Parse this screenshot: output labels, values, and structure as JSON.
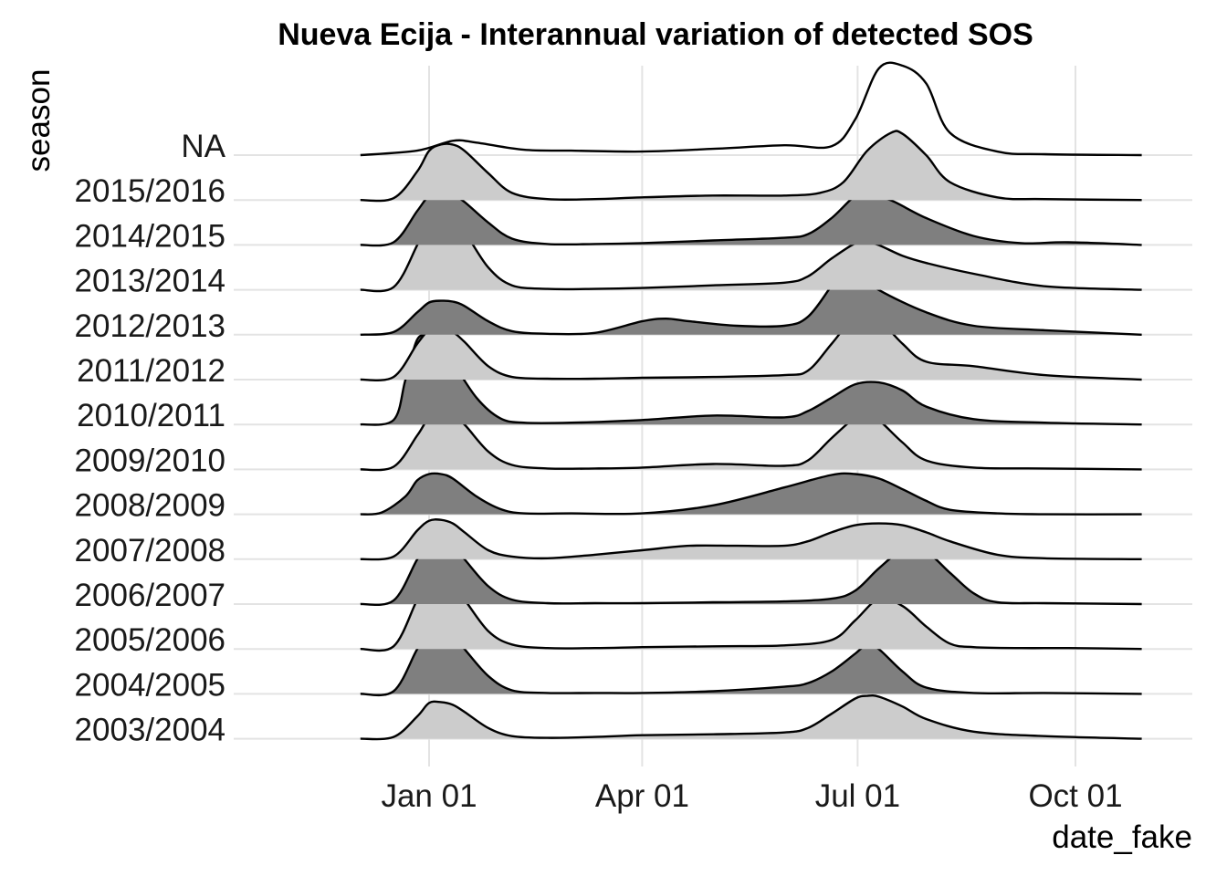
{
  "chart_data": {
    "type": "area",
    "subtype": "ridgeline",
    "title": "Nueva Ecija - Interannual variation of detected SOS",
    "xlabel": "date_fake",
    "ylabel": "season",
    "x_ticks": [
      "Jan 01",
      "Apr 01",
      "Jul 01",
      "Oct 01"
    ],
    "x_tick_days": [
      0,
      90,
      181,
      273
    ],
    "x_range_days": [
      -29,
      301
    ],
    "grid": true,
    "fill_colors": {
      "light": "#cccccc",
      "dark": "#7f7f7f",
      "none": "none"
    },
    "note_units": "x values are days relative to Jan 01; y values are relative ridge heights",
    "series": [
      {
        "name": "NA",
        "fill": "none",
        "x": [
          -29,
          -5,
          10,
          20,
          40,
          60,
          90,
          120,
          150,
          170,
          180,
          190,
          200,
          210,
          220,
          240,
          260,
          301
        ],
        "y": [
          0,
          0.05,
          0.16,
          0.14,
          0.06,
          0.05,
          0.04,
          0.07,
          0.11,
          0.1,
          0.4,
          0.97,
          1.0,
          0.8,
          0.25,
          0.04,
          0.01,
          0
        ]
      },
      {
        "name": "2015/2016",
        "fill": "light",
        "x": [
          -29,
          -15,
          -5,
          0,
          5,
          10,
          15,
          25,
          35,
          50,
          70,
          90,
          120,
          150,
          165,
          175,
          185,
          195,
          200,
          210,
          220,
          240,
          260,
          301
        ],
        "y": [
          0,
          0.02,
          0.32,
          0.55,
          0.62,
          0.62,
          0.55,
          0.3,
          0.08,
          0.01,
          0.01,
          0.03,
          0.05,
          0.05,
          0.08,
          0.2,
          0.55,
          0.75,
          0.74,
          0.5,
          0.2,
          0.03,
          0.01,
          0
        ]
      },
      {
        "name": "2014/2015",
        "fill": "dark",
        "x": [
          -29,
          -15,
          -5,
          0,
          5,
          10,
          15,
          25,
          35,
          50,
          70,
          90,
          120,
          150,
          160,
          170,
          180,
          185,
          195,
          210,
          230,
          250,
          270,
          301
        ],
        "y": [
          0,
          0.03,
          0.38,
          0.55,
          0.58,
          0.56,
          0.48,
          0.25,
          0.07,
          0.01,
          0.01,
          0.02,
          0.05,
          0.08,
          0.12,
          0.3,
          0.55,
          0.57,
          0.5,
          0.3,
          0.1,
          0.02,
          0.03,
          0
        ]
      },
      {
        "name": "2013/2014",
        "fill": "light",
        "x": [
          -29,
          -15,
          -5,
          0,
          5,
          10,
          15,
          25,
          35,
          50,
          70,
          90,
          120,
          150,
          160,
          170,
          180,
          185,
          190,
          200,
          210,
          230,
          260,
          301
        ],
        "y": [
          0,
          0.03,
          0.5,
          0.8,
          0.84,
          0.8,
          0.65,
          0.25,
          0.05,
          0.01,
          0.01,
          0.02,
          0.05,
          0.08,
          0.15,
          0.35,
          0.52,
          0.53,
          0.5,
          0.38,
          0.3,
          0.18,
          0.04,
          0
        ]
      },
      {
        "name": "2012/2013",
        "fill": "dark",
        "x": [
          -29,
          -15,
          -5,
          0,
          5,
          10,
          15,
          25,
          35,
          50,
          70,
          90,
          100,
          110,
          130,
          150,
          160,
          170,
          175,
          180,
          190,
          210,
          230,
          260,
          301
        ],
        "y": [
          0,
          0.03,
          0.25,
          0.36,
          0.38,
          0.37,
          0.32,
          0.15,
          0.04,
          0.01,
          0.02,
          0.15,
          0.18,
          0.15,
          0.1,
          0.1,
          0.2,
          0.55,
          0.75,
          0.7,
          0.5,
          0.25,
          0.1,
          0.05,
          0
        ]
      },
      {
        "name": "2011/2012",
        "fill": "light",
        "x": [
          -29,
          -15,
          -5,
          0,
          5,
          10,
          15,
          25,
          35,
          50,
          70,
          90,
          120,
          150,
          160,
          170,
          180,
          185,
          190,
          200,
          210,
          230,
          260,
          301
        ],
        "y": [
          0,
          0.03,
          0.4,
          0.55,
          0.56,
          0.53,
          0.42,
          0.15,
          0.03,
          0.01,
          0.01,
          0.02,
          0.03,
          0.05,
          0.1,
          0.4,
          0.72,
          0.74,
          0.68,
          0.4,
          0.2,
          0.15,
          0.05,
          0
        ]
      },
      {
        "name": "2010/2011",
        "fill": "dark",
        "x": [
          -29,
          -15,
          -10,
          -5,
          0,
          5,
          10,
          20,
          30,
          40,
          60,
          90,
          120,
          150,
          160,
          170,
          180,
          190,
          200,
          210,
          230,
          260,
          301
        ],
        "y": [
          0,
          0.05,
          0.5,
          0.95,
          0.98,
          0.9,
          0.7,
          0.3,
          0.07,
          0.02,
          0.02,
          0.05,
          0.1,
          0.08,
          0.15,
          0.3,
          0.45,
          0.47,
          0.38,
          0.2,
          0.06,
          0.02,
          0
        ]
      },
      {
        "name": "2009/2010",
        "fill": "light",
        "x": [
          -29,
          -15,
          -5,
          0,
          5,
          10,
          15,
          25,
          35,
          50,
          70,
          90,
          120,
          150,
          160,
          170,
          180,
          185,
          190,
          200,
          210,
          230,
          260,
          301
        ],
        "y": [
          0,
          0.03,
          0.38,
          0.58,
          0.62,
          0.6,
          0.5,
          0.2,
          0.05,
          0.01,
          0.01,
          0.02,
          0.06,
          0.04,
          0.1,
          0.35,
          0.58,
          0.6,
          0.55,
          0.3,
          0.1,
          0.02,
          0.01,
          0
        ]
      },
      {
        "name": "2008/2009",
        "fill": "dark",
        "x": [
          -29,
          -20,
          -10,
          -5,
          0,
          5,
          10,
          20,
          30,
          40,
          60,
          90,
          120,
          150,
          170,
          180,
          190,
          200,
          210,
          220,
          240,
          260,
          301
        ],
        "y": [
          0,
          0.02,
          0.2,
          0.38,
          0.45,
          0.45,
          0.4,
          0.2,
          0.06,
          0.01,
          0.01,
          0.01,
          0.1,
          0.3,
          0.44,
          0.45,
          0.4,
          0.28,
          0.15,
          0.05,
          0.01,
          0,
          0
        ]
      },
      {
        "name": "2007/2008",
        "fill": "light",
        "x": [
          -29,
          -15,
          -5,
          0,
          5,
          10,
          15,
          25,
          35,
          50,
          70,
          90,
          110,
          130,
          150,
          160,
          170,
          180,
          190,
          200,
          210,
          220,
          240,
          260,
          301
        ],
        "y": [
          0,
          0.03,
          0.32,
          0.43,
          0.44,
          0.4,
          0.3,
          0.1,
          0.03,
          0.01,
          0.05,
          0.1,
          0.15,
          0.15,
          0.15,
          0.2,
          0.3,
          0.38,
          0.4,
          0.38,
          0.3,
          0.2,
          0.05,
          0.01,
          0
        ]
      },
      {
        "name": "2006/2007",
        "fill": "dark",
        "x": [
          -29,
          -15,
          -5,
          0,
          5,
          10,
          15,
          25,
          35,
          50,
          70,
          90,
          120,
          150,
          170,
          180,
          190,
          200,
          210,
          220,
          230,
          240,
          260,
          301
        ],
        "y": [
          0,
          0.04,
          0.5,
          0.68,
          0.7,
          0.65,
          0.5,
          0.2,
          0.05,
          0.01,
          0.01,
          0.01,
          0.02,
          0.03,
          0.06,
          0.15,
          0.4,
          0.6,
          0.58,
          0.35,
          0.12,
          0.02,
          0.01,
          0
        ]
      },
      {
        "name": "2005/2006",
        "fill": "light",
        "x": [
          -29,
          -15,
          -5,
          0,
          5,
          10,
          15,
          25,
          35,
          50,
          70,
          90,
          120,
          150,
          170,
          180,
          190,
          200,
          210,
          220,
          230,
          250,
          270,
          301
        ],
        "y": [
          0,
          0.03,
          0.55,
          0.75,
          0.76,
          0.7,
          0.55,
          0.2,
          0.05,
          0.01,
          0.01,
          0.02,
          0.03,
          0.04,
          0.1,
          0.32,
          0.56,
          0.48,
          0.25,
          0.06,
          0.02,
          0.01,
          0.01,
          0
        ]
      },
      {
        "name": "2004/2005",
        "fill": "dark",
        "x": [
          -29,
          -15,
          -5,
          0,
          5,
          10,
          15,
          25,
          35,
          50,
          70,
          90,
          120,
          150,
          160,
          170,
          180,
          185,
          190,
          200,
          210,
          230,
          260,
          301
        ],
        "y": [
          0,
          0.03,
          0.5,
          0.68,
          0.7,
          0.66,
          0.5,
          0.2,
          0.04,
          0.01,
          0.01,
          0.01,
          0.03,
          0.08,
          0.12,
          0.25,
          0.45,
          0.55,
          0.5,
          0.25,
          0.07,
          0.01,
          0.01,
          0
        ]
      },
      {
        "name": "2003/2004",
        "fill": "light",
        "x": [
          -29,
          -15,
          -5,
          0,
          5,
          10,
          15,
          25,
          35,
          50,
          70,
          90,
          120,
          150,
          160,
          170,
          180,
          185,
          190,
          200,
          210,
          230,
          260,
          301
        ],
        "y": [
          0,
          0.02,
          0.25,
          0.4,
          0.41,
          0.38,
          0.3,
          0.12,
          0.03,
          0.01,
          0.02,
          0.04,
          0.05,
          0.07,
          0.12,
          0.28,
          0.45,
          0.48,
          0.47,
          0.36,
          0.22,
          0.08,
          0.03,
          0
        ]
      }
    ]
  }
}
